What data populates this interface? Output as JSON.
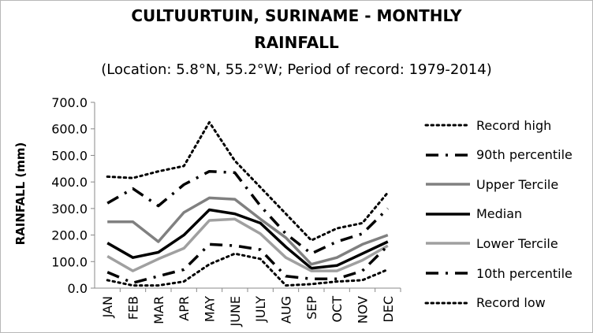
{
  "chart_data": {
    "type": "line",
    "title_line1": "CULTUURTUIN, SURINAME - MONTHLY",
    "title_line2": "RAINFALL",
    "subtitle": "(Location: 5.8°N, 55.2°W; Period of record: 1979-2014)",
    "xlabel": "",
    "ylabel": "RAINFALL (mm)",
    "ylim": [
      0,
      700
    ],
    "yticks": [
      "0.0",
      "100.0",
      "200.0",
      "300.0",
      "400.0",
      "500.0",
      "600.0",
      "700.0"
    ],
    "categories": [
      "JAN",
      "FEB",
      "MAR",
      "APR",
      "MAY",
      "JUNE",
      "JULY",
      "AUG",
      "SEP",
      "OCT",
      "NOV",
      "DEC"
    ],
    "grid": false,
    "legend_position": "right",
    "series": [
      {
        "name": "Record high",
        "style": "dotted",
        "color": "#000000",
        "values": [
          420,
          415,
          440,
          460,
          625,
          480,
          380,
          280,
          180,
          225,
          245,
          360
        ]
      },
      {
        "name": "90th percentile",
        "style": "dashdot",
        "color": "#000000",
        "values": [
          320,
          375,
          310,
          390,
          440,
          435,
          310,
          205,
          130,
          175,
          205,
          300
        ]
      },
      {
        "name": "Upper Tercile",
        "style": "solid",
        "color": "#808080",
        "values": [
          250,
          250,
          175,
          285,
          340,
          335,
          260,
          190,
          90,
          115,
          165,
          200
        ]
      },
      {
        "name": "Median",
        "style": "solid",
        "color": "#000000",
        "values": [
          170,
          115,
          135,
          200,
          295,
          280,
          245,
          155,
          75,
          85,
          130,
          175
        ]
      },
      {
        "name": "Lower Tercile",
        "style": "solid",
        "color": "#a0a0a0",
        "values": [
          120,
          65,
          110,
          150,
          255,
          260,
          205,
          115,
          65,
          65,
          105,
          160
        ]
      },
      {
        "name": "10th percentile",
        "style": "dashdot",
        "color": "#000000",
        "values": [
          60,
          20,
          45,
          70,
          165,
          160,
          145,
          45,
          35,
          35,
          65,
          160
        ]
      },
      {
        "name": "Record low",
        "style": "dotted",
        "color": "#000000",
        "values": [
          30,
          10,
          10,
          25,
          90,
          130,
          110,
          10,
          15,
          25,
          30,
          70
        ]
      }
    ]
  }
}
